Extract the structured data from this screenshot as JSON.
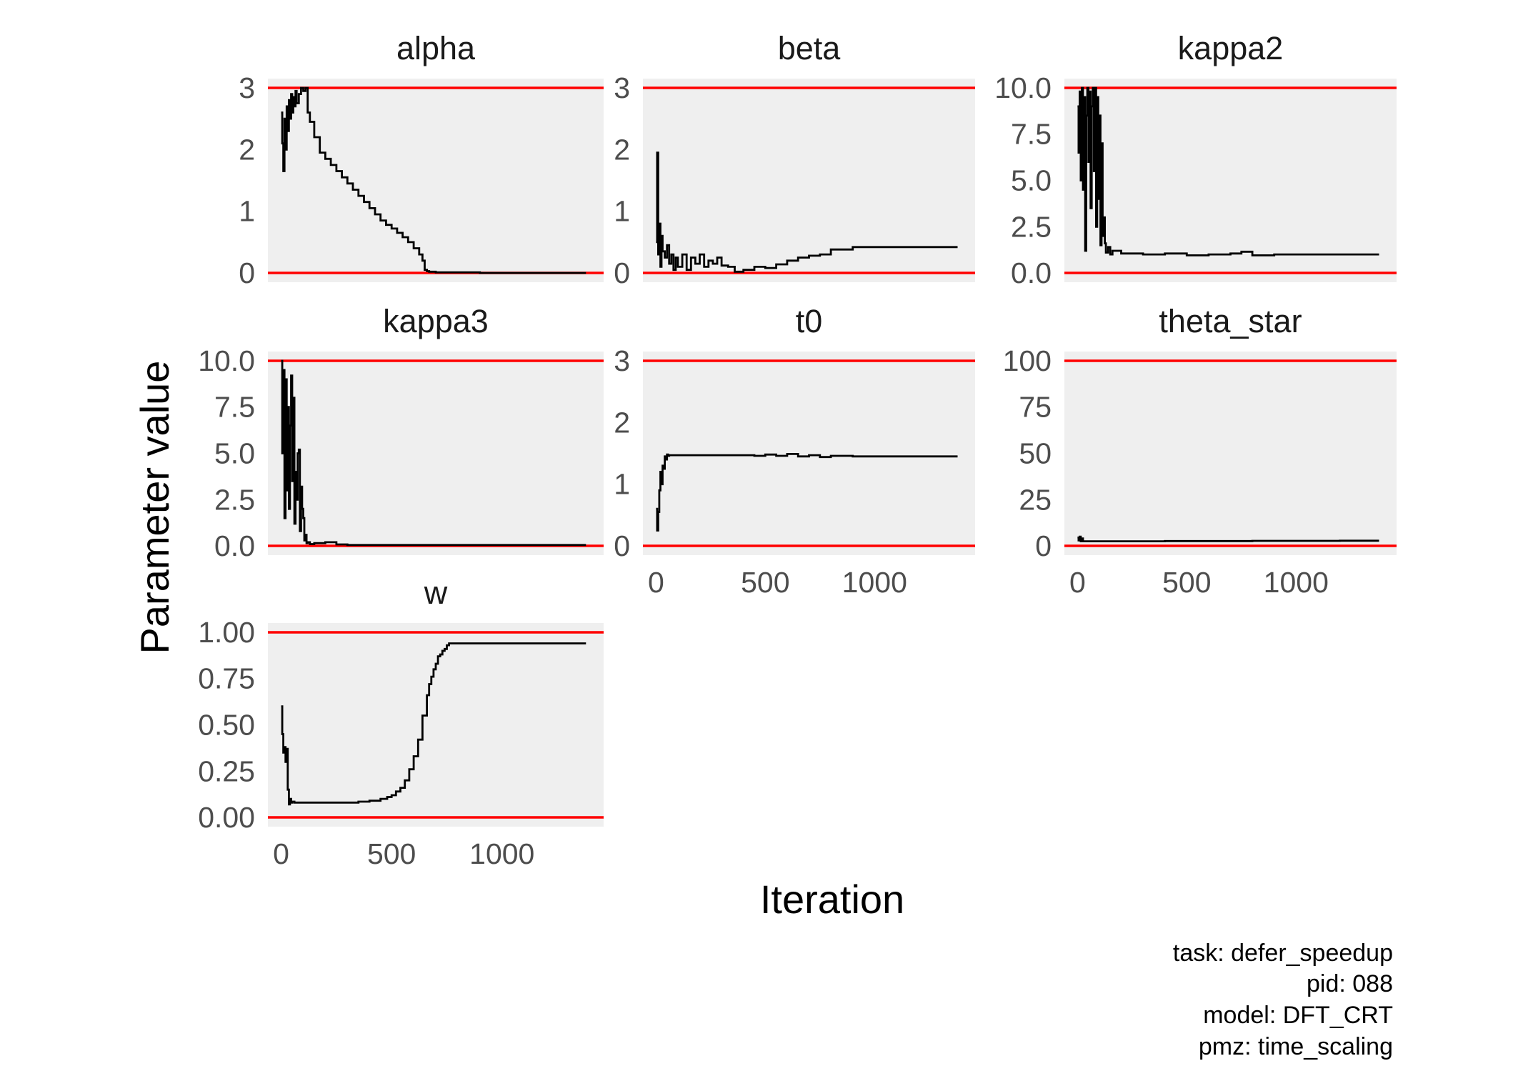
{
  "chart_data": {
    "type": "line",
    "xlabel": "Iteration",
    "ylabel": "Parameter value",
    "caption": [
      "task: defer_speedup",
      "pid: 088",
      "model: DFT_CRT",
      "pmz: time_scaling"
    ],
    "xlim": [
      -60,
      1460
    ],
    "x_ticks": [
      0,
      500,
      1000
    ],
    "bound_color": "#ff0000",
    "panel_bg": "#efefef",
    "line_color": "#000000",
    "panels": [
      {
        "name": "alpha",
        "ylim": [
          -0.15,
          3.15
        ],
        "y_ticks": [
          0,
          1,
          2,
          3
        ],
        "y_tick_labels": [
          "0",
          "1",
          "2",
          "3"
        ],
        "bounds": [
          0,
          3
        ],
        "show_x_axis": false,
        "series": {
          "x": [
            0,
            5,
            10,
            15,
            20,
            25,
            30,
            35,
            40,
            45,
            50,
            55,
            60,
            65,
            70,
            80,
            90,
            100,
            110,
            120,
            130,
            150,
            175,
            200,
            225,
            250,
            275,
            300,
            325,
            350,
            375,
            400,
            425,
            450,
            475,
            500,
            525,
            550,
            575,
            600,
            625,
            640,
            650,
            660,
            670,
            700,
            800,
            900,
            1000,
            1100,
            1200,
            1300,
            1380
          ],
          "y": [
            2.6,
            2.1,
            1.65,
            2.5,
            2.0,
            2.7,
            2.3,
            2.8,
            2.5,
            2.9,
            2.6,
            2.85,
            2.7,
            2.95,
            2.75,
            2.9,
            3.0,
            2.95,
            3.0,
            2.6,
            2.45,
            2.2,
            1.95,
            1.85,
            1.75,
            1.65,
            1.55,
            1.45,
            1.35,
            1.25,
            1.15,
            1.05,
            0.95,
            0.85,
            0.78,
            0.72,
            0.65,
            0.58,
            0.5,
            0.4,
            0.3,
            0.2,
            0.05,
            0.03,
            0.02,
            0.01,
            0.01,
            0.0,
            0.0,
            0.0,
            0.0,
            0.0,
            0.0
          ]
        }
      },
      {
        "name": "beta",
        "ylim": [
          -0.15,
          3.15
        ],
        "y_ticks": [
          0,
          1,
          2,
          3
        ],
        "y_tick_labels": [
          "0",
          "1",
          "2",
          "3"
        ],
        "bounds": [
          0,
          3
        ],
        "show_x_axis": false,
        "series": {
          "x": [
            0,
            5,
            10,
            15,
            20,
            25,
            30,
            40,
            50,
            60,
            70,
            80,
            90,
            100,
            120,
            140,
            160,
            180,
            200,
            220,
            240,
            260,
            280,
            300,
            330,
            360,
            400,
            450,
            500,
            550,
            600,
            650,
            700,
            750,
            800,
            900,
            1000,
            1100,
            1200,
            1300,
            1380
          ],
          "y": [
            0.5,
            1.95,
            0.3,
            0.8,
            0.1,
            0.6,
            0.35,
            0.25,
            0.45,
            0.15,
            0.3,
            0.05,
            0.25,
            0.1,
            0.3,
            0.05,
            0.25,
            0.15,
            0.3,
            0.1,
            0.2,
            0.15,
            0.25,
            0.12,
            0.1,
            0.02,
            0.05,
            0.1,
            0.08,
            0.14,
            0.2,
            0.25,
            0.28,
            0.3,
            0.38,
            0.42,
            0.42,
            0.42,
            0.42,
            0.42,
            0.42
          ]
        }
      },
      {
        "name": "kappa2",
        "ylim": [
          -0.5,
          10.5
        ],
        "y_ticks": [
          0,
          2.5,
          5,
          7.5,
          10
        ],
        "y_tick_labels": [
          "0.0",
          "2.5",
          "5.0",
          "7.5",
          "10.0"
        ],
        "bounds": [
          0,
          10
        ],
        "show_x_axis": false,
        "series": {
          "x": [
            0,
            5,
            10,
            15,
            20,
            25,
            30,
            35,
            40,
            45,
            50,
            55,
            60,
            65,
            70,
            75,
            80,
            85,
            90,
            95,
            100,
            105,
            110,
            115,
            120,
            125,
            130,
            140,
            150,
            160,
            200,
            300,
            400,
            500,
            600,
            700,
            750,
            800,
            900,
            1000,
            1100,
            1200,
            1300,
            1380
          ],
          "y": [
            9.0,
            6.5,
            9.8,
            5.0,
            10.0,
            4.5,
            9.5,
            1.2,
            8.5,
            10.0,
            6.0,
            9.8,
            3.5,
            9.0,
            10.0,
            5.5,
            10.0,
            2.5,
            9.5,
            4.0,
            8.5,
            1.5,
            7.0,
            2.0,
            3.0,
            1.6,
            1.1,
            1.4,
            1.0,
            1.2,
            1.05,
            1.0,
            1.05,
            0.95,
            1.0,
            1.05,
            1.15,
            0.95,
            1.0,
            1.0,
            1.0,
            1.0,
            1.0,
            1.0
          ]
        }
      },
      {
        "name": "kappa3",
        "ylim": [
          -0.5,
          10.5
        ],
        "y_ticks": [
          0,
          2.5,
          5,
          7.5,
          10
        ],
        "y_tick_labels": [
          "0.0",
          "2.5",
          "5.0",
          "7.5",
          "10.0"
        ],
        "bounds": [
          0,
          10
        ],
        "show_x_axis": false,
        "series": {
          "x": [
            0,
            5,
            10,
            15,
            20,
            25,
            30,
            35,
            40,
            45,
            50,
            55,
            60,
            65,
            70,
            75,
            80,
            85,
            90,
            95,
            100,
            105,
            110,
            115,
            120,
            130,
            150,
            200,
            250,
            300,
            400,
            600,
            800,
            1000,
            1200,
            1380
          ],
          "y": [
            10.0,
            5.0,
            9.5,
            1.5,
            9.0,
            3.0,
            7.5,
            2.0,
            6.5,
            9.2,
            3.5,
            8.0,
            1.2,
            4.0,
            2.5,
            5.0,
            5.2,
            0.8,
            3.2,
            2.0,
            1.5,
            0.3,
            0.6,
            0.15,
            0.2,
            0.1,
            0.15,
            0.2,
            0.08,
            0.05,
            0.05,
            0.05,
            0.05,
            0.05,
            0.05,
            0.05
          ]
        }
      },
      {
        "name": "t0",
        "ylim": [
          -0.15,
          3.15
        ],
        "y_ticks": [
          0,
          1,
          2,
          3
        ],
        "y_tick_labels": [
          "0",
          "1",
          "2",
          "3"
        ],
        "bounds": [
          0,
          3
        ],
        "show_x_axis": true,
        "series": {
          "x": [
            0,
            5,
            10,
            15,
            20,
            25,
            30,
            35,
            40,
            45,
            50,
            55,
            60,
            80,
            100,
            200,
            300,
            400,
            450,
            500,
            550,
            600,
            650,
            700,
            750,
            800,
            900,
            1000,
            1100,
            1200,
            1300,
            1380
          ],
          "y": [
            0.6,
            0.25,
            0.55,
            0.9,
            1.2,
            1.0,
            1.3,
            1.25,
            1.45,
            1.4,
            1.48,
            1.46,
            1.47,
            1.47,
            1.47,
            1.47,
            1.47,
            1.47,
            1.46,
            1.48,
            1.46,
            1.49,
            1.45,
            1.47,
            1.44,
            1.46,
            1.45,
            1.45,
            1.45,
            1.45,
            1.45,
            1.45
          ]
        }
      },
      {
        "name": "theta_star",
        "ylim": [
          -5,
          105
        ],
        "y_ticks": [
          0,
          25,
          50,
          75,
          100
        ],
        "y_tick_labels": [
          "0",
          "25",
          "50",
          "75",
          "100"
        ],
        "bounds": [
          0,
          100
        ],
        "show_x_axis": true,
        "series": {
          "x": [
            0,
            5,
            10,
            15,
            20,
            25,
            30,
            50,
            100,
            200,
            400,
            600,
            800,
            1000,
            1200,
            1380
          ],
          "y": [
            4.5,
            3.0,
            5.0,
            2.5,
            4.0,
            2.5,
            2.5,
            2.5,
            2.5,
            2.5,
            2.6,
            2.6,
            2.7,
            2.7,
            2.8,
            2.8
          ]
        }
      },
      {
        "name": "w",
        "ylim": [
          -0.05,
          1.05
        ],
        "y_ticks": [
          0,
          0.25,
          0.5,
          0.75,
          1.0
        ],
        "y_tick_labels": [
          "0.00",
          "0.25",
          "0.50",
          "0.75",
          "1.00"
        ],
        "bounds": [
          0,
          1
        ],
        "show_x_axis": true,
        "series": {
          "x": [
            0,
            5,
            10,
            15,
            20,
            25,
            30,
            35,
            40,
            45,
            50,
            60,
            80,
            100,
            200,
            300,
            350,
            400,
            450,
            480,
            500,
            520,
            540,
            560,
            580,
            600,
            620,
            640,
            660,
            670,
            680,
            690,
            700,
            710,
            720,
            730,
            740,
            750,
            760,
            800,
            900,
            1000,
            1100,
            1200,
            1300,
            1380
          ],
          "y": [
            0.6,
            0.45,
            0.35,
            0.38,
            0.3,
            0.37,
            0.15,
            0.07,
            0.1,
            0.08,
            0.085,
            0.08,
            0.08,
            0.08,
            0.08,
            0.08,
            0.085,
            0.09,
            0.1,
            0.11,
            0.12,
            0.14,
            0.16,
            0.2,
            0.26,
            0.33,
            0.42,
            0.55,
            0.66,
            0.72,
            0.76,
            0.8,
            0.83,
            0.87,
            0.88,
            0.9,
            0.91,
            0.93,
            0.94,
            0.94,
            0.94,
            0.94,
            0.94,
            0.94,
            0.94,
            0.94
          ]
        }
      }
    ]
  }
}
